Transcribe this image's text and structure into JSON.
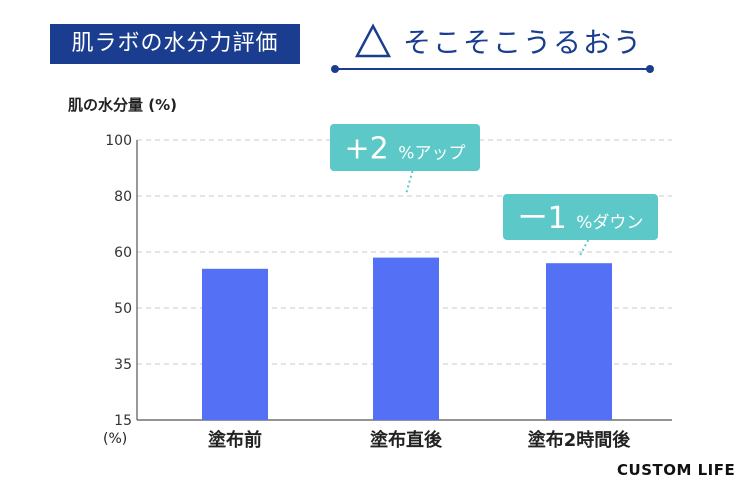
{
  "header": {
    "badge": "肌ラボの水分力評価",
    "rating_symbol": "triangle-outline-icon",
    "rating_text": "そこそこうるおう"
  },
  "colors": {
    "navy": "#1a3d8f",
    "bar": "#5470f5",
    "callout": "#5cc8c8"
  },
  "chart_data": {
    "type": "bar",
    "title": "",
    "ylabel": "肌の水分量 (%)",
    "xunit": "(%)",
    "categories": [
      "塗布前",
      "塗布直後",
      "塗布2時間後"
    ],
    "values": [
      57,
      59,
      58
    ],
    "yticks": [
      "15",
      "35",
      "50",
      "60",
      "80",
      "100"
    ],
    "grid": true,
    "annotations": [
      {
        "category": "塗布直後",
        "sign": "+",
        "value": "2",
        "unit": "%アップ"
      },
      {
        "category": "塗布2時間後",
        "sign": "ー",
        "value": "1",
        "unit": "%ダウン"
      }
    ]
  },
  "brand": "CUSTOM LIFE"
}
